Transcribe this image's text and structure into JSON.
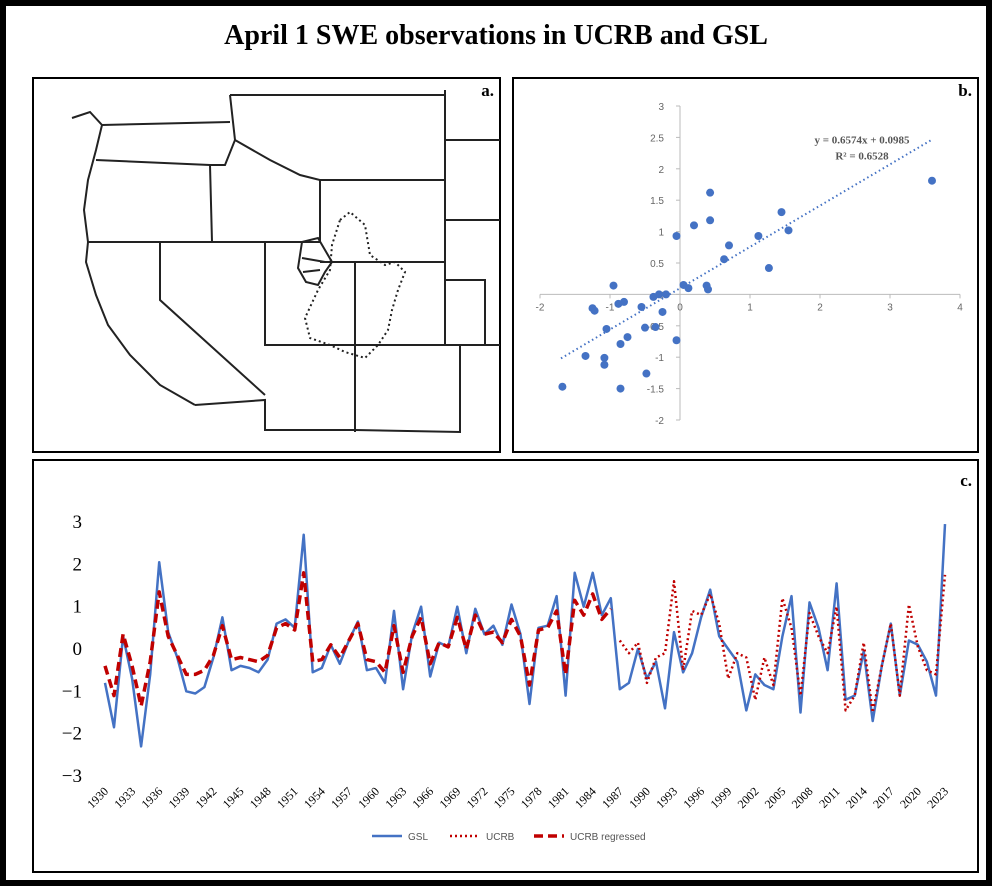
{
  "title": "April 1 SWE observations in UCRB and GSL",
  "panel_labels": [
    "a.",
    "b.",
    "c."
  ],
  "chart_data": [
    {
      "type": "scatter",
      "color": "#4472c4",
      "x": [
        3.6,
        0.43,
        1.45,
        0.2,
        0.43,
        1.55,
        -0.05,
        1.12,
        0.7,
        0.63,
        1.27,
        -0.95,
        0.05,
        0.12,
        0.38,
        0.4,
        -0.3,
        -0.2,
        -0.38,
        -0.8,
        -0.88,
        -1.22,
        -1.25,
        -0.55,
        -0.25,
        -1.05,
        -0.5,
        -0.35,
        -0.75,
        -0.85,
        -0.05,
        -1.08,
        -1.35,
        -1.08,
        -0.48,
        -1.68,
        -0.85
      ],
      "values": [
        1.81,
        1.62,
        1.31,
        1.1,
        1.18,
        1.02,
        0.93,
        0.93,
        0.78,
        0.56,
        0.42,
        0.14,
        0.15,
        0.1,
        0.14,
        0.08,
        0.0,
        0.0,
        -0.04,
        -0.12,
        -0.15,
        -0.26,
        -0.22,
        -0.2,
        -0.28,
        -0.55,
        -0.53,
        -0.52,
        -0.68,
        -0.79,
        -0.73,
        -1.01,
        -0.98,
        -1.12,
        -1.26,
        -1.47,
        -1.5
      ],
      "xlim": [
        -2,
        4
      ],
      "ylim": [
        -2,
        3
      ],
      "xticks": [
        -2,
        -1,
        0,
        1,
        2,
        3,
        4
      ],
      "yticks": [
        -2,
        -1.5,
        -1,
        -0.5,
        0,
        0.5,
        1,
        1.5,
        2,
        2.5,
        3
      ],
      "trendline": {
        "slope": 0.6574,
        "intercept": 0.0985,
        "x": [
          -1.7,
          3.6
        ]
      },
      "annotations": [
        "y = 0.6574x + 0.0985",
        "R² = 0.6528"
      ]
    },
    {
      "type": "line",
      "legend": "bottom",
      "x": [
        1930,
        1931,
        1932,
        1933,
        1934,
        1935,
        1936,
        1937,
        1938,
        1939,
        1940,
        1941,
        1942,
        1943,
        1944,
        1945,
        1946,
        1947,
        1948,
        1949,
        1950,
        1951,
        1952,
        1953,
        1954,
        1955,
        1956,
        1957,
        1958,
        1959,
        1960,
        1961,
        1962,
        1963,
        1964,
        1965,
        1966,
        1967,
        1968,
        1969,
        1970,
        1971,
        1972,
        1973,
        1974,
        1975,
        1976,
        1977,
        1978,
        1979,
        1980,
        1981,
        1982,
        1983,
        1984,
        1985,
        1986,
        1987,
        1988,
        1989,
        1990,
        1991,
        1992,
        1993,
        1994,
        1995,
        1996,
        1997,
        1998,
        1999,
        2000,
        2001,
        2002,
        2003,
        2004,
        2005,
        2006,
        2007,
        2008,
        2009,
        2010,
        2011,
        2012,
        2013,
        2014,
        2015,
        2016,
        2017,
        2018,
        2019,
        2020,
        2021,
        2022,
        2023
      ],
      "xlim": [
        1930,
        2023
      ],
      "xticks": [
        1930,
        1933,
        1936,
        1939,
        1942,
        1945,
        1948,
        1951,
        1954,
        1957,
        1960,
        1963,
        1966,
        1969,
        1972,
        1975,
        1978,
        1981,
        1984,
        1987,
        1990,
        1993,
        1996,
        1999,
        2002,
        2005,
        2008,
        2011,
        2014,
        2017,
        2020,
        2023
      ],
      "ylim": [
        -3,
        3
      ],
      "yticks": [
        {
          "value": -3,
          "label": "−3"
        },
        {
          "value": -2,
          "label": "−2"
        },
        {
          "value": -1,
          "label": "−1"
        },
        0,
        1,
        2,
        3
      ],
      "series": [
        {
          "name": "GSL",
          "color": "#4472c4",
          "dash": "solid",
          "values": [
            -0.8,
            -1.85,
            0.3,
            -0.7,
            -2.3,
            -0.6,
            2.05,
            0.4,
            -0.2,
            -1.0,
            -1.05,
            -0.9,
            -0.2,
            0.75,
            -0.5,
            -0.4,
            -0.45,
            -0.55,
            -0.25,
            0.6,
            0.7,
            0.5,
            2.7,
            -0.55,
            -0.45,
            0.1,
            -0.35,
            0.2,
            0.65,
            -0.5,
            -0.45,
            -0.8,
            0.9,
            -0.95,
            0.35,
            1.0,
            -0.65,
            0.15,
            0.05,
            1.0,
            -0.1,
            0.95,
            0.35,
            0.55,
            0.1,
            1.05,
            0.35,
            -1.3,
            0.5,
            0.55,
            1.25,
            -1.1,
            1.8,
            1.0,
            1.8,
            0.8,
            1.2,
            -0.95,
            -0.8,
            0.0,
            -0.7,
            -0.3,
            -1.4,
            0.4,
            -0.55,
            -0.1,
            0.75,
            1.4,
            0.3,
            0.0,
            -0.3,
            -1.45,
            -0.6,
            -0.85,
            -0.95,
            0.3,
            1.25,
            -1.5,
            1.1,
            0.5,
            -0.5,
            1.55,
            -1.2,
            -1.1,
            -0.05,
            -1.7,
            -0.4,
            0.6,
            -1.1,
            0.2,
            0.1,
            -0.3,
            -1.1,
            2.95
          ]
        },
        {
          "name": "UCRB",
          "color": "#c00000",
          "dash": "dotted",
          "values": [
            null,
            null,
            null,
            null,
            null,
            null,
            null,
            null,
            null,
            null,
            null,
            null,
            null,
            null,
            null,
            null,
            null,
            null,
            null,
            null,
            null,
            null,
            null,
            null,
            null,
            null,
            null,
            null,
            null,
            null,
            null,
            null,
            null,
            null,
            null,
            null,
            null,
            null,
            null,
            null,
            null,
            null,
            null,
            null,
            null,
            null,
            null,
            null,
            null,
            null,
            null,
            null,
            null,
            null,
            null,
            null,
            null,
            0.2,
            -0.1,
            0.15,
            -0.8,
            -0.2,
            -0.1,
            1.6,
            -0.5,
            0.9,
            0.8,
            1.3,
            0.6,
            -0.7,
            -0.1,
            -0.2,
            -1.2,
            -0.2,
            -0.85,
            1.2,
            0.5,
            -1.1,
            0.85,
            0.3,
            -0.1,
            1.0,
            -1.45,
            -1.1,
            0.15,
            -1.5,
            -0.4,
            0.6,
            -1.1,
            1.05,
            0.05,
            -0.5,
            -0.6,
            1.75
          ]
        },
        {
          "name": "UCRB regressed",
          "color": "#c00000",
          "dash": "dashed",
          "values": [
            -0.4,
            -1.1,
            0.35,
            -0.4,
            -1.35,
            -0.3,
            1.35,
            0.3,
            -0.15,
            -0.6,
            -0.6,
            -0.5,
            -0.15,
            0.55,
            -0.25,
            -0.2,
            -0.25,
            -0.3,
            -0.15,
            0.5,
            0.6,
            0.45,
            1.8,
            -0.3,
            -0.25,
            0.1,
            -0.2,
            0.2,
            0.6,
            -0.25,
            -0.3,
            -0.55,
            0.55,
            -0.55,
            0.3,
            0.75,
            -0.35,
            0.15,
            0.05,
            0.75,
            0.0,
            0.8,
            0.35,
            0.4,
            0.15,
            0.7,
            0.3,
            -0.85,
            0.45,
            0.5,
            0.9,
            -0.6,
            1.15,
            0.8,
            1.3,
            0.7,
            0.95,
            null,
            null,
            null,
            null,
            null,
            null,
            null,
            null,
            null,
            null,
            null,
            null,
            null,
            null,
            null,
            null,
            null,
            null,
            null,
            null,
            null,
            null,
            null,
            null,
            null,
            null,
            null,
            null,
            null,
            null,
            null,
            null,
            null,
            null,
            null,
            null,
            null
          ]
        }
      ]
    }
  ]
}
